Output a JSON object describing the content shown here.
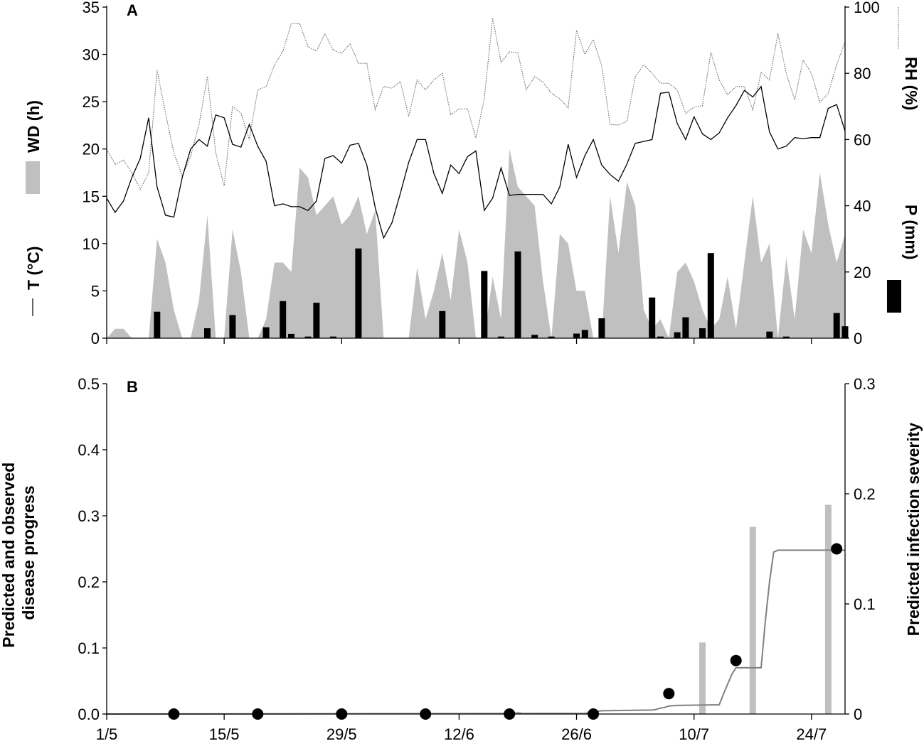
{
  "chart_data": [
    {
      "panel": "A",
      "type": "line",
      "x_unit": "day index from 1/5 (0 = 1 May)",
      "xticks": [
        "",
        "",
        "",
        "",
        "",
        "",
        "",
        ""
      ],
      "left_axis": {
        "ylim": [
          0,
          35
        ],
        "ticks": [
          "0",
          "5",
          "10",
          "15",
          "20",
          "25",
          "30",
          "35"
        ],
        "labels": [
          "WD (h)",
          "T (°C)"
        ]
      },
      "right_axis": {
        "ylim": [
          0,
          100
        ],
        "ticks": [
          "0",
          "20",
          "40",
          "60",
          "80",
          "100"
        ],
        "labels": [
          "RH (%)",
          "P (mm)"
        ]
      },
      "series": [
        {
          "name": "WD (h)",
          "type": "area",
          "axis": "left",
          "color": "#c0c0c0",
          "x": [
            0,
            1,
            2,
            3,
            4,
            5,
            6,
            7,
            8,
            9,
            10,
            11,
            12,
            13,
            14,
            15,
            16,
            17,
            18,
            19,
            20,
            21,
            22,
            23,
            24,
            25,
            26,
            27,
            28,
            29,
            30,
            31,
            32,
            33,
            34,
            35,
            36,
            37,
            38,
            39,
            40,
            41,
            42,
            43,
            44,
            45,
            46,
            47,
            48,
            49,
            50,
            51,
            52,
            53,
            54,
            55,
            56,
            57,
            58,
            59,
            60,
            61,
            62,
            63,
            64,
            65,
            66,
            67,
            68,
            69,
            70,
            71,
            72,
            73,
            74,
            75,
            76,
            77,
            78,
            79,
            80,
            81,
            82,
            83,
            84,
            85,
            86,
            87,
            88
          ],
          "values": [
            0,
            1,
            1,
            0,
            0,
            0,
            10.5,
            8,
            3,
            0,
            0,
            4,
            13,
            0,
            0,
            11.5,
            7,
            0,
            0,
            2,
            8,
            8,
            7,
            18,
            17,
            13,
            14,
            15,
            12,
            13,
            15,
            11,
            13.5,
            0,
            0,
            0,
            0,
            7.5,
            2,
            5,
            9,
            4,
            11.5,
            8,
            0,
            0,
            6.5,
            2,
            20,
            16,
            15,
            14,
            6,
            0,
            11,
            10,
            5,
            5,
            0,
            0,
            15,
            9,
            16.5,
            14,
            3,
            1,
            2,
            0,
            7,
            8,
            6,
            3,
            1,
            2,
            6.5,
            1,
            8,
            15,
            8,
            10,
            0,
            8.5,
            2,
            11.5,
            9,
            17.5,
            12,
            8,
            11
          ]
        },
        {
          "name": "T (°C)",
          "type": "line",
          "axis": "left",
          "color": "#000000",
          "x": [
            0,
            1,
            2,
            3,
            4,
            5,
            6,
            7,
            8,
            9,
            10,
            11,
            12,
            13,
            14,
            15,
            16,
            17,
            18,
            19,
            20,
            21,
            22,
            23,
            24,
            25,
            26,
            27,
            28,
            29,
            30,
            31,
            32,
            33,
            34,
            35,
            36,
            37,
            38,
            39,
            40,
            41,
            42,
            43,
            44,
            45,
            46,
            47,
            48,
            49,
            50,
            51,
            52,
            53,
            54,
            55,
            56,
            57,
            58,
            59,
            60,
            61,
            62,
            63,
            64,
            65,
            66,
            67,
            68,
            69,
            70,
            71,
            72,
            73,
            74,
            75,
            76,
            77,
            78,
            79,
            80,
            81,
            82,
            83,
            84,
            85,
            86,
            87,
            88
          ],
          "values": [
            14.8,
            13.3,
            14.5,
            17,
            19,
            23.3,
            16,
            13,
            12.8,
            17,
            20,
            21,
            20.3,
            23.6,
            23.3,
            20.5,
            20.2,
            22.6,
            20.3,
            18.7,
            14,
            14.2,
            13.9,
            13.9,
            13.5,
            14.5,
            19,
            19.3,
            18.5,
            20.4,
            20.6,
            18.3,
            13.8,
            10.6,
            12.2,
            15.3,
            18.6,
            21,
            21,
            17.4,
            15.3,
            18.3,
            17.4,
            19.2,
            19.8,
            13.5,
            14.8,
            18,
            15.1,
            15.2,
            15.2,
            15.2,
            15.2,
            14.2,
            16,
            20.5,
            17,
            19.3,
            21,
            18.3,
            17.3,
            16.6,
            18.4,
            20.6,
            20.8,
            21,
            25.9,
            26,
            22.7,
            21,
            23.4,
            21.6,
            21,
            21.7,
            23.3,
            24.6,
            26.2,
            25.5,
            26.6,
            21.8,
            20,
            20.3,
            21.2,
            21.1,
            21.2,
            21.2,
            24.3,
            24.7,
            21.9
          ]
        },
        {
          "name": "RH (%)",
          "type": "line",
          "style": "dotted",
          "axis": "right",
          "color": "#555555",
          "x": [
            0,
            1,
            2,
            3,
            4,
            5,
            6,
            7,
            8,
            9,
            10,
            11,
            12,
            13,
            14,
            15,
            16,
            17,
            18,
            19,
            20,
            21,
            22,
            23,
            24,
            25,
            26,
            27,
            28,
            29,
            30,
            31,
            32,
            33,
            34,
            35,
            36,
            37,
            38,
            39,
            40,
            41,
            42,
            43,
            44,
            45,
            46,
            47,
            48,
            49,
            50,
            51,
            52,
            53,
            54,
            55,
            56,
            57,
            58,
            59,
            60,
            61,
            62,
            63,
            64,
            65,
            66,
            67,
            68,
            69,
            70,
            71,
            72,
            73,
            74,
            75,
            76,
            77,
            78,
            79,
            80,
            81,
            82,
            83,
            84,
            85,
            86,
            87,
            88
          ],
          "values": [
            57,
            52.5,
            53.8,
            50,
            45,
            50,
            81,
            68,
            56,
            49,
            55,
            64.5,
            79,
            56,
            46,
            70,
            68,
            60,
            75,
            76,
            82.5,
            86.7,
            95,
            95,
            88,
            86.7,
            92,
            87,
            86,
            89,
            83,
            83,
            69,
            76,
            75.5,
            77.5,
            67,
            78,
            75,
            78,
            80,
            67.5,
            69.2,
            69.3,
            60.5,
            72.3,
            96.7,
            83.3,
            86.5,
            86.2,
            75,
            79,
            77.3,
            74,
            72.3,
            69.6,
            93,
            85.7,
            90.2,
            82.3,
            64.5,
            64.4,
            65.5,
            79,
            82.6,
            80,
            77,
            77,
            75,
            67.9,
            69.8,
            70.2,
            86.3,
            78,
            73.5,
            76,
            76,
            69,
            80.3,
            78,
            92,
            80,
            72,
            84,
            80,
            71.2,
            74,
            82.6,
            89.5
          ]
        },
        {
          "name": "P (mm)",
          "type": "bar",
          "axis": "right",
          "color": "#000000",
          "x": [
            6,
            12,
            15,
            19,
            21,
            22,
            24,
            25,
            27,
            30,
            40,
            45,
            47,
            49,
            51,
            53,
            56,
            57,
            59,
            65,
            66,
            68,
            69,
            71,
            72,
            79,
            81,
            87,
            88
          ],
          "values": [
            8,
            3,
            7,
            3.3,
            11.2,
            1.3,
            0.5,
            10.7,
            0.5,
            27.1,
            8.2,
            20.3,
            0.5,
            26.2,
            1,
            0.5,
            1.4,
            2.5,
            6,
            12.3,
            0.5,
            1.8,
            6.3,
            3,
            25.7,
            2,
            0.5,
            7.6,
            3.6
          ]
        }
      ]
    },
    {
      "panel": "B",
      "type": "line",
      "x_unit": "day index from 1/5 (0 = 1 May)",
      "xticks": [
        "1/5",
        "15/5",
        "29/5",
        "12/6",
        "26/6",
        "10/7",
        "24/7"
      ],
      "left_axis": {
        "ylim": [
          0,
          0.5
        ],
        "ticks": [
          "0.0",
          "0.1",
          "0.2",
          "0.3",
          "0.4",
          "0.5"
        ],
        "label": "Predicted and observed disease progress"
      },
      "right_axis": {
        "ylim": [
          0,
          0.3
        ],
        "ticks": [
          "0",
          "0.1",
          "0.2",
          "0.3"
        ],
        "label": "Predicted infection severity"
      },
      "series": [
        {
          "name": "Predicted infection severity",
          "type": "bar",
          "axis": "right",
          "color": "#c0c0c0",
          "x": [
            49,
            71,
            77,
            86
          ],
          "values": [
            0.002,
            0.065,
            0.17,
            0.19
          ]
        },
        {
          "name": "Predicted disease progress",
          "type": "line",
          "axis": "left",
          "color": "#808080",
          "x": [
            0,
            57,
            57.5,
            58,
            58.5,
            59,
            65,
            65.5,
            66,
            66.5,
            67,
            68,
            73,
            73.5,
            74,
            74.5,
            75,
            78,
            78.5,
            79,
            79.5,
            80,
            81,
            88
          ],
          "values": [
            0,
            0.001,
            0.002,
            0.003,
            0.004,
            0.005,
            0.006,
            0.007,
            0.009,
            0.01,
            0.012,
            0.013,
            0.014,
            0.03,
            0.045,
            0.06,
            0.07,
            0.07,
            0.14,
            0.2,
            0.245,
            0.248,
            0.248,
            0.248
          ]
        },
        {
          "name": "Observed disease progress",
          "type": "scatter",
          "axis": "left",
          "color": "#000000",
          "x": [
            8,
            18,
            28,
            38,
            48,
            58,
            67,
            75,
            87
          ],
          "values": [
            0,
            0,
            0,
            0,
            0,
            0,
            0.031,
            0.081,
            0.25
          ]
        }
      ]
    }
  ],
  "panel_labels": {
    "a": "A",
    "b": "B"
  }
}
